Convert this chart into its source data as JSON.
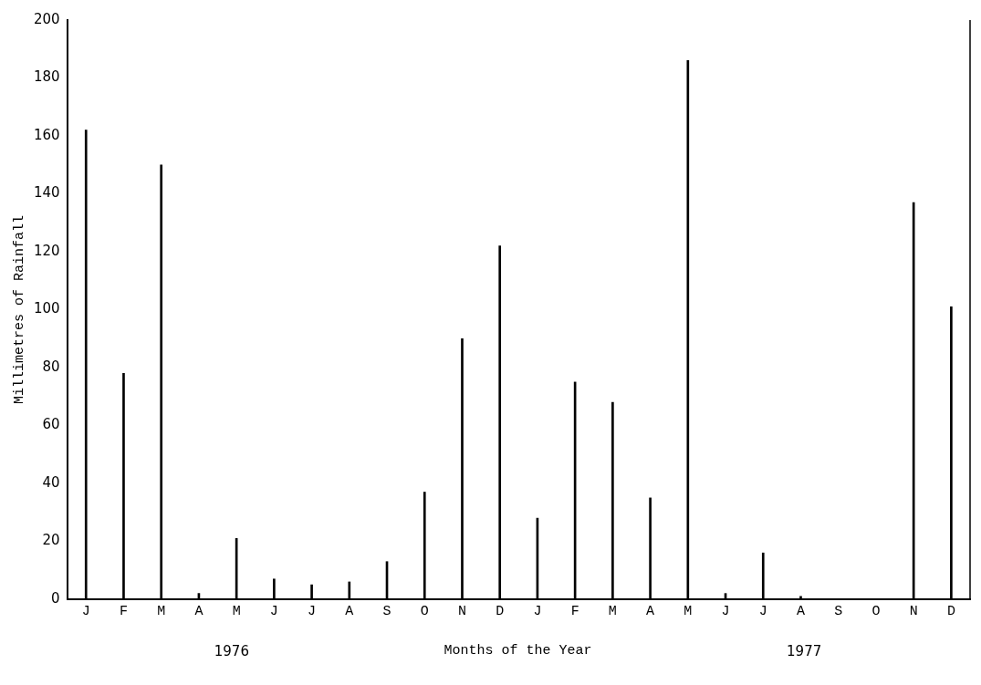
{
  "chart_data": {
    "type": "bar",
    "xlabel": "Months of the Year",
    "ylabel": "Millimetres of Rainfall",
    "annotations": [
      "1976",
      "1977"
    ],
    "categories": [
      "J",
      "F",
      "M",
      "A",
      "M",
      "J",
      "J",
      "A",
      "S",
      "O",
      "N",
      "D",
      "J",
      "F",
      "M",
      "A",
      "M",
      "J",
      "J",
      "A",
      "S",
      "O",
      "N",
      "D"
    ],
    "values": [
      162,
      78,
      150,
      2,
      21,
      7,
      5,
      6,
      13,
      37,
      90,
      122,
      28,
      75,
      68,
      35,
      186,
      2,
      16,
      1,
      0,
      0,
      137,
      101
    ],
    "color": "#000000",
    "ylim": [
      0,
      200
    ],
    "yticks": [
      0,
      20,
      40,
      60,
      80,
      100,
      120,
      140,
      160,
      180,
      200
    ],
    "grid": false,
    "legend": false
  }
}
